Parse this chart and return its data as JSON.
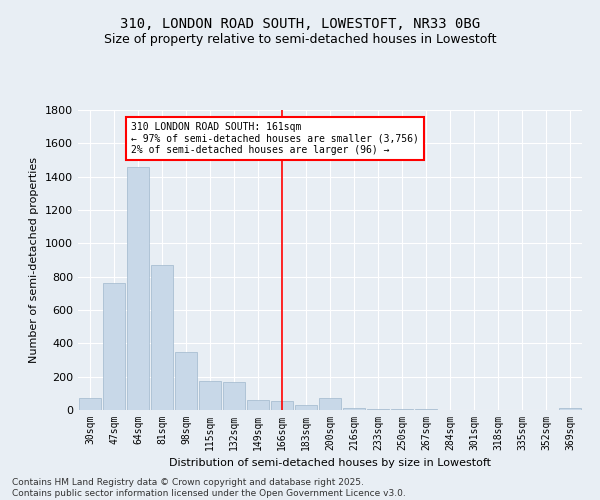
{
  "title1": "310, LONDON ROAD SOUTH, LOWESTOFT, NR33 0BG",
  "title2": "Size of property relative to semi-detached houses in Lowestoft",
  "xlabel": "Distribution of semi-detached houses by size in Lowestoft",
  "ylabel": "Number of semi-detached properties",
  "categories": [
    "30sqm",
    "47sqm",
    "64sqm",
    "81sqm",
    "98sqm",
    "115sqm",
    "132sqm",
    "149sqm",
    "166sqm",
    "183sqm",
    "200sqm",
    "216sqm",
    "233sqm",
    "250sqm",
    "267sqm",
    "284sqm",
    "301sqm",
    "318sqm",
    "335sqm",
    "352sqm",
    "369sqm"
  ],
  "values": [
    75,
    760,
    1460,
    870,
    350,
    175,
    170,
    60,
    55,
    30,
    70,
    10,
    5,
    5,
    5,
    3,
    2,
    2,
    2,
    2,
    10
  ],
  "bar_color": "#c8d8e8",
  "bar_edge_color": "#a0b8cc",
  "vline_x_idx": 8,
  "vline_color": "red",
  "annotation_text": "310 LONDON ROAD SOUTH: 161sqm\n← 97% of semi-detached houses are smaller (3,756)\n2% of semi-detached houses are larger (96) →",
  "annotation_box_color": "white",
  "annotation_box_edge_color": "red",
  "footnote": "Contains HM Land Registry data © Crown copyright and database right 2025.\nContains public sector information licensed under the Open Government Licence v3.0.",
  "ylim": [
    0,
    1800
  ],
  "yticks": [
    0,
    200,
    400,
    600,
    800,
    1000,
    1200,
    1400,
    1600,
    1800
  ],
  "bg_color": "#e8eef4",
  "grid_color": "white",
  "title1_fontsize": 10,
  "title2_fontsize": 9,
  "axis_label_fontsize": 8,
  "tick_fontsize": 8,
  "footnote_fontsize": 6.5
}
